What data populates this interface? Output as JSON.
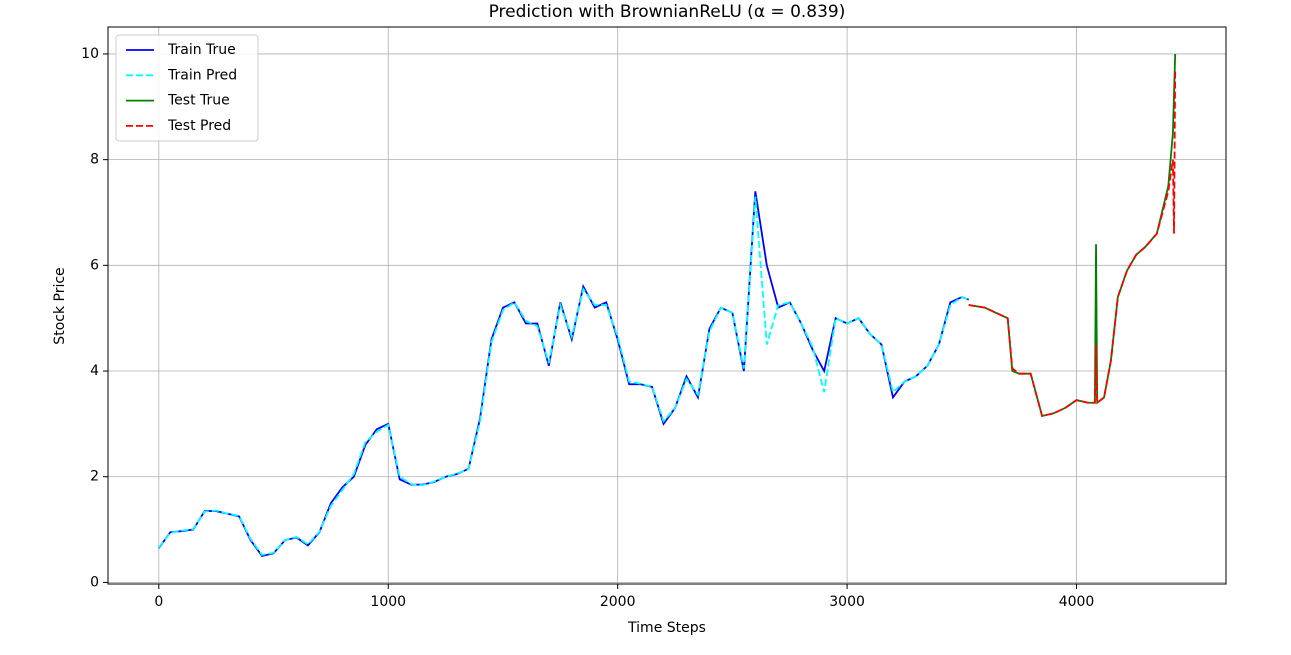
{
  "chart_data": {
    "type": "line",
    "title": "Prediction with BrownianReLU (α = 0.839)",
    "xlabel": "Time Steps",
    "ylabel": "Stock Price",
    "xlim": [
      -221.5,
      4651.5
    ],
    "ylim": [
      -0.03,
      10.51
    ],
    "xticks": [
      0,
      1000,
      2000,
      3000,
      4000
    ],
    "yticks": [
      0,
      2,
      4,
      6,
      8,
      10
    ],
    "grid": true,
    "legend": "upper left",
    "series": [
      {
        "name": "Train True",
        "color": "#0000ff",
        "linestyle": "solid",
        "x": [
          0,
          50,
          100,
          150,
          200,
          250,
          300,
          350,
          400,
          450,
          500,
          550,
          600,
          650,
          700,
          750,
          800,
          850,
          900,
          950,
          1000,
          1050,
          1100,
          1150,
          1200,
          1250,
          1300,
          1350,
          1400,
          1450,
          1500,
          1550,
          1600,
          1650,
          1700,
          1750,
          1800,
          1850,
          1900,
          1950,
          2000,
          2050,
          2100,
          2150,
          2200,
          2250,
          2300,
          2350,
          2400,
          2450,
          2500,
          2550,
          2600,
          2650,
          2700,
          2750,
          2800,
          2850,
          2900,
          2950,
          3000,
          3050,
          3100,
          3150,
          3200,
          3250,
          3300,
          3350,
          3400,
          3450,
          3500,
          3530
        ],
        "values": [
          0.65,
          0.95,
          0.97,
          1.0,
          1.35,
          1.35,
          1.3,
          1.25,
          0.8,
          0.5,
          0.55,
          0.8,
          0.85,
          0.7,
          0.95,
          1.5,
          1.8,
          2.0,
          2.6,
          2.9,
          3.0,
          1.95,
          1.85,
          1.85,
          1.9,
          2.0,
          2.05,
          2.15,
          3.1,
          4.6,
          5.2,
          5.3,
          4.9,
          4.9,
          4.1,
          5.3,
          4.6,
          5.6,
          5.2,
          5.3,
          4.6,
          3.75,
          3.75,
          3.7,
          3.0,
          3.3,
          3.9,
          3.5,
          4.8,
          5.2,
          5.1,
          4.0,
          7.4,
          6.0,
          5.2,
          5.3,
          4.9,
          4.4,
          4.0,
          5.0,
          4.9,
          5.0,
          4.7,
          4.5,
          3.5,
          3.8,
          3.9,
          4.1,
          4.5,
          5.3,
          5.4,
          5.35
        ]
      },
      {
        "name": "Train Pred",
        "color": "#00ffff",
        "linestyle": "dashed",
        "x": [
          0,
          50,
          100,
          150,
          200,
          250,
          300,
          350,
          400,
          450,
          500,
          550,
          600,
          650,
          700,
          750,
          800,
          850,
          900,
          950,
          1000,
          1050,
          1100,
          1150,
          1200,
          1250,
          1300,
          1350,
          1400,
          1450,
          1500,
          1550,
          1600,
          1650,
          1700,
          1750,
          1800,
          1850,
          1900,
          1950,
          2000,
          2050,
          2100,
          2150,
          2200,
          2250,
          2300,
          2350,
          2400,
          2450,
          2500,
          2550,
          2600,
          2650,
          2700,
          2750,
          2800,
          2850,
          2900,
          2950,
          3000,
          3050,
          3100,
          3150,
          3200,
          3250,
          3300,
          3350,
          3400,
          3450,
          3500,
          3530
        ],
        "values": [
          0.66,
          0.94,
          0.98,
          1.01,
          1.34,
          1.36,
          1.3,
          1.26,
          0.82,
          0.52,
          0.56,
          0.8,
          0.86,
          0.72,
          0.96,
          1.45,
          1.75,
          2.05,
          2.65,
          2.85,
          2.98,
          2.0,
          1.86,
          1.84,
          1.91,
          2.0,
          2.06,
          2.14,
          3.05,
          4.55,
          5.15,
          5.3,
          4.95,
          4.85,
          4.15,
          5.25,
          4.65,
          5.55,
          5.25,
          5.25,
          4.65,
          3.8,
          3.76,
          3.7,
          3.05,
          3.3,
          3.85,
          3.55,
          4.75,
          5.2,
          5.1,
          4.05,
          7.3,
          4.5,
          5.25,
          5.3,
          4.9,
          4.45,
          3.6,
          5.0,
          4.9,
          5.0,
          4.7,
          4.5,
          3.6,
          3.8,
          3.9,
          4.1,
          4.5,
          5.25,
          5.4,
          5.35
        ]
      },
      {
        "name": "Test True",
        "color": "#008000",
        "linestyle": "solid",
        "x": [
          3530,
          3600,
          3650,
          3700,
          3720,
          3750,
          3800,
          3850,
          3900,
          3950,
          4000,
          4050,
          4080,
          4085,
          4090,
          4120,
          4150,
          4180,
          4220,
          4260,
          4300,
          4350,
          4400,
          4420,
          4430
        ],
        "values": [
          5.25,
          5.2,
          5.1,
          5.0,
          4.0,
          3.95,
          3.95,
          3.15,
          3.2,
          3.3,
          3.45,
          3.4,
          3.4,
          6.4,
          3.4,
          3.5,
          4.2,
          5.4,
          5.9,
          6.2,
          6.35,
          6.6,
          7.5,
          8.5,
          10.0
        ]
      },
      {
        "name": "Test Pred",
        "color": "#ff0000",
        "linestyle": "dashed",
        "x": [
          3530,
          3600,
          3650,
          3700,
          3720,
          3750,
          3800,
          3850,
          3900,
          3950,
          4000,
          4050,
          4080,
          4085,
          4090,
          4120,
          4150,
          4180,
          4220,
          4260,
          4300,
          4350,
          4400,
          4420,
          4425,
          4430
        ],
        "values": [
          5.25,
          5.2,
          5.1,
          5.0,
          4.05,
          3.95,
          3.95,
          3.15,
          3.2,
          3.3,
          3.45,
          3.4,
          3.4,
          4.5,
          3.4,
          3.5,
          4.2,
          5.4,
          5.9,
          6.2,
          6.35,
          6.6,
          7.4,
          8.0,
          6.6,
          9.7
        ]
      }
    ]
  }
}
